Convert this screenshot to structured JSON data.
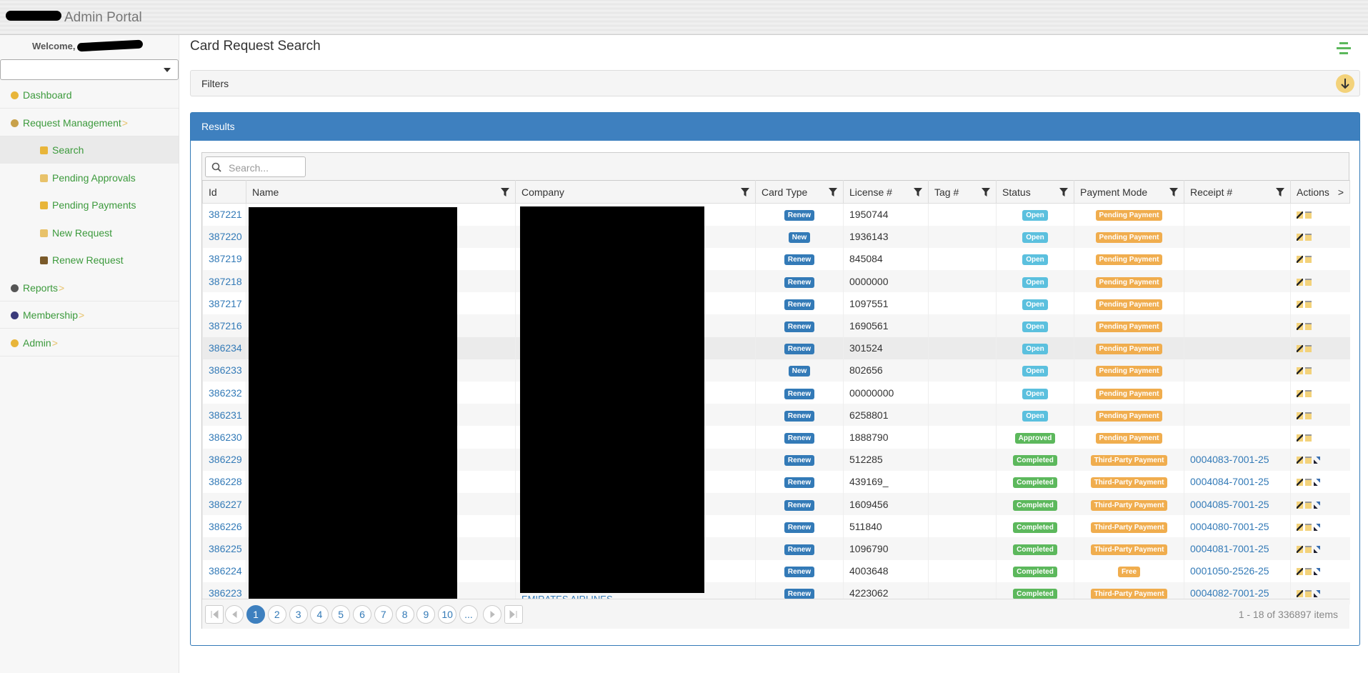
{
  "header": {
    "title": "Admin Portal"
  },
  "sidebar": {
    "welcome": "Welcome,",
    "nav": [
      {
        "label": "Dashboard",
        "level": 0,
        "icon": "#e8b53a"
      },
      {
        "label": "Request Management",
        "level": 0,
        "icon": "#c8a14a",
        "more": ">"
      },
      {
        "label": "Search",
        "level": 1,
        "icon": "#e8b53a",
        "active": true
      },
      {
        "label": "Pending Approvals",
        "level": 1,
        "icon": "#e8c26a"
      },
      {
        "label": "Pending Payments",
        "level": 1,
        "icon": "#e8b53a"
      },
      {
        "label": "New Request",
        "level": 1,
        "icon": "#e8c26a"
      },
      {
        "label": "Renew Request",
        "level": 1,
        "icon": "#7a5a2a"
      },
      {
        "label": "Reports",
        "level": 0,
        "icon": "#555",
        "more": ">"
      },
      {
        "label": "Membership",
        "level": 0,
        "icon": "#3a3a7a",
        "more": ">"
      },
      {
        "label": "Admin",
        "level": 0,
        "icon": "#e8b53a",
        "more": ">"
      }
    ]
  },
  "page": {
    "title": "Card Request Search",
    "filters": "Filters",
    "results": "Results",
    "search_placeholder": "Search..."
  },
  "table": {
    "columns": [
      "Id",
      "Name",
      "Company",
      "Card Type",
      "License #",
      "Tag #",
      "Status",
      "Payment Mode",
      "Receipt #",
      "Actions"
    ],
    "actions_more": ">",
    "rows": [
      {
        "id": "387221",
        "card_type": "Renew",
        "license": "1950744",
        "status": "Open",
        "payment": "Pending Payment"
      },
      {
        "id": "387220",
        "card_type": "New",
        "license": "1936143",
        "status": "Open",
        "payment": "Pending Payment"
      },
      {
        "id": "387219",
        "card_type": "Renew",
        "license": "845084",
        "status": "Open",
        "payment": "Pending Payment"
      },
      {
        "id": "387218",
        "card_type": "Renew",
        "license": "0000000",
        "status": "Open",
        "payment": "Pending Payment"
      },
      {
        "id": "387217",
        "card_type": "Renew",
        "license": "1097551",
        "status": "Open",
        "payment": "Pending Payment"
      },
      {
        "id": "387216",
        "card_type": "Renew",
        "license": "1690561",
        "status": "Open",
        "payment": "Pending Payment"
      },
      {
        "id": "386234",
        "card_type": "Renew",
        "license": "301524",
        "status": "Open",
        "payment": "Pending Payment"
      },
      {
        "id": "386233",
        "card_type": "New",
        "license": "802656",
        "status": "Open",
        "payment": "Pending Payment"
      },
      {
        "id": "386232",
        "card_type": "Renew",
        "license": "00000000",
        "status": "Open",
        "payment": "Pending Payment"
      },
      {
        "id": "386231",
        "card_type": "Renew",
        "license": "6258801",
        "status": "Open",
        "payment": "Pending Payment"
      },
      {
        "id": "386230",
        "card_type": "Renew",
        "license": "1888790",
        "status": "Approved",
        "payment": "Pending Payment"
      },
      {
        "id": "386229",
        "card_type": "Renew",
        "license": "512285",
        "status": "Completed",
        "payment": "Third-Party Payment",
        "receipt": "0004083-7001-25"
      },
      {
        "id": "386228",
        "card_type": "Renew",
        "license": "439169_",
        "status": "Completed",
        "payment": "Third-Party Payment",
        "receipt": "0004084-7001-25"
      },
      {
        "id": "386227",
        "card_type": "Renew",
        "license": "1609456",
        "status": "Completed",
        "payment": "Third-Party Payment",
        "receipt": "0004085-7001-25"
      },
      {
        "id": "386226",
        "card_type": "Renew",
        "license": "511840",
        "status": "Completed",
        "payment": "Third-Party Payment",
        "receipt": "0004080-7001-25"
      },
      {
        "id": "386225",
        "card_type": "Renew",
        "license": "1096790",
        "status": "Completed",
        "payment": "Third-Party Payment",
        "receipt": "0004081-7001-25"
      },
      {
        "id": "386224",
        "card_type": "Renew",
        "license": "4003648",
        "status": "Completed",
        "payment": "Free",
        "receipt": "0001050-2526-25"
      },
      {
        "id": "386223",
        "card_type": "Renew",
        "license": "4223062",
        "status": "Completed",
        "payment": "Third-Party Payment",
        "receipt": "0004082-7001-25",
        "company": "EMIRATES AIRLINES"
      }
    ]
  },
  "pager": {
    "pages": [
      "1",
      "2",
      "3",
      "4",
      "5",
      "6",
      "7",
      "8",
      "9",
      "10",
      "..."
    ],
    "current": "1",
    "info": "1 - 18 of 336897 items"
  }
}
